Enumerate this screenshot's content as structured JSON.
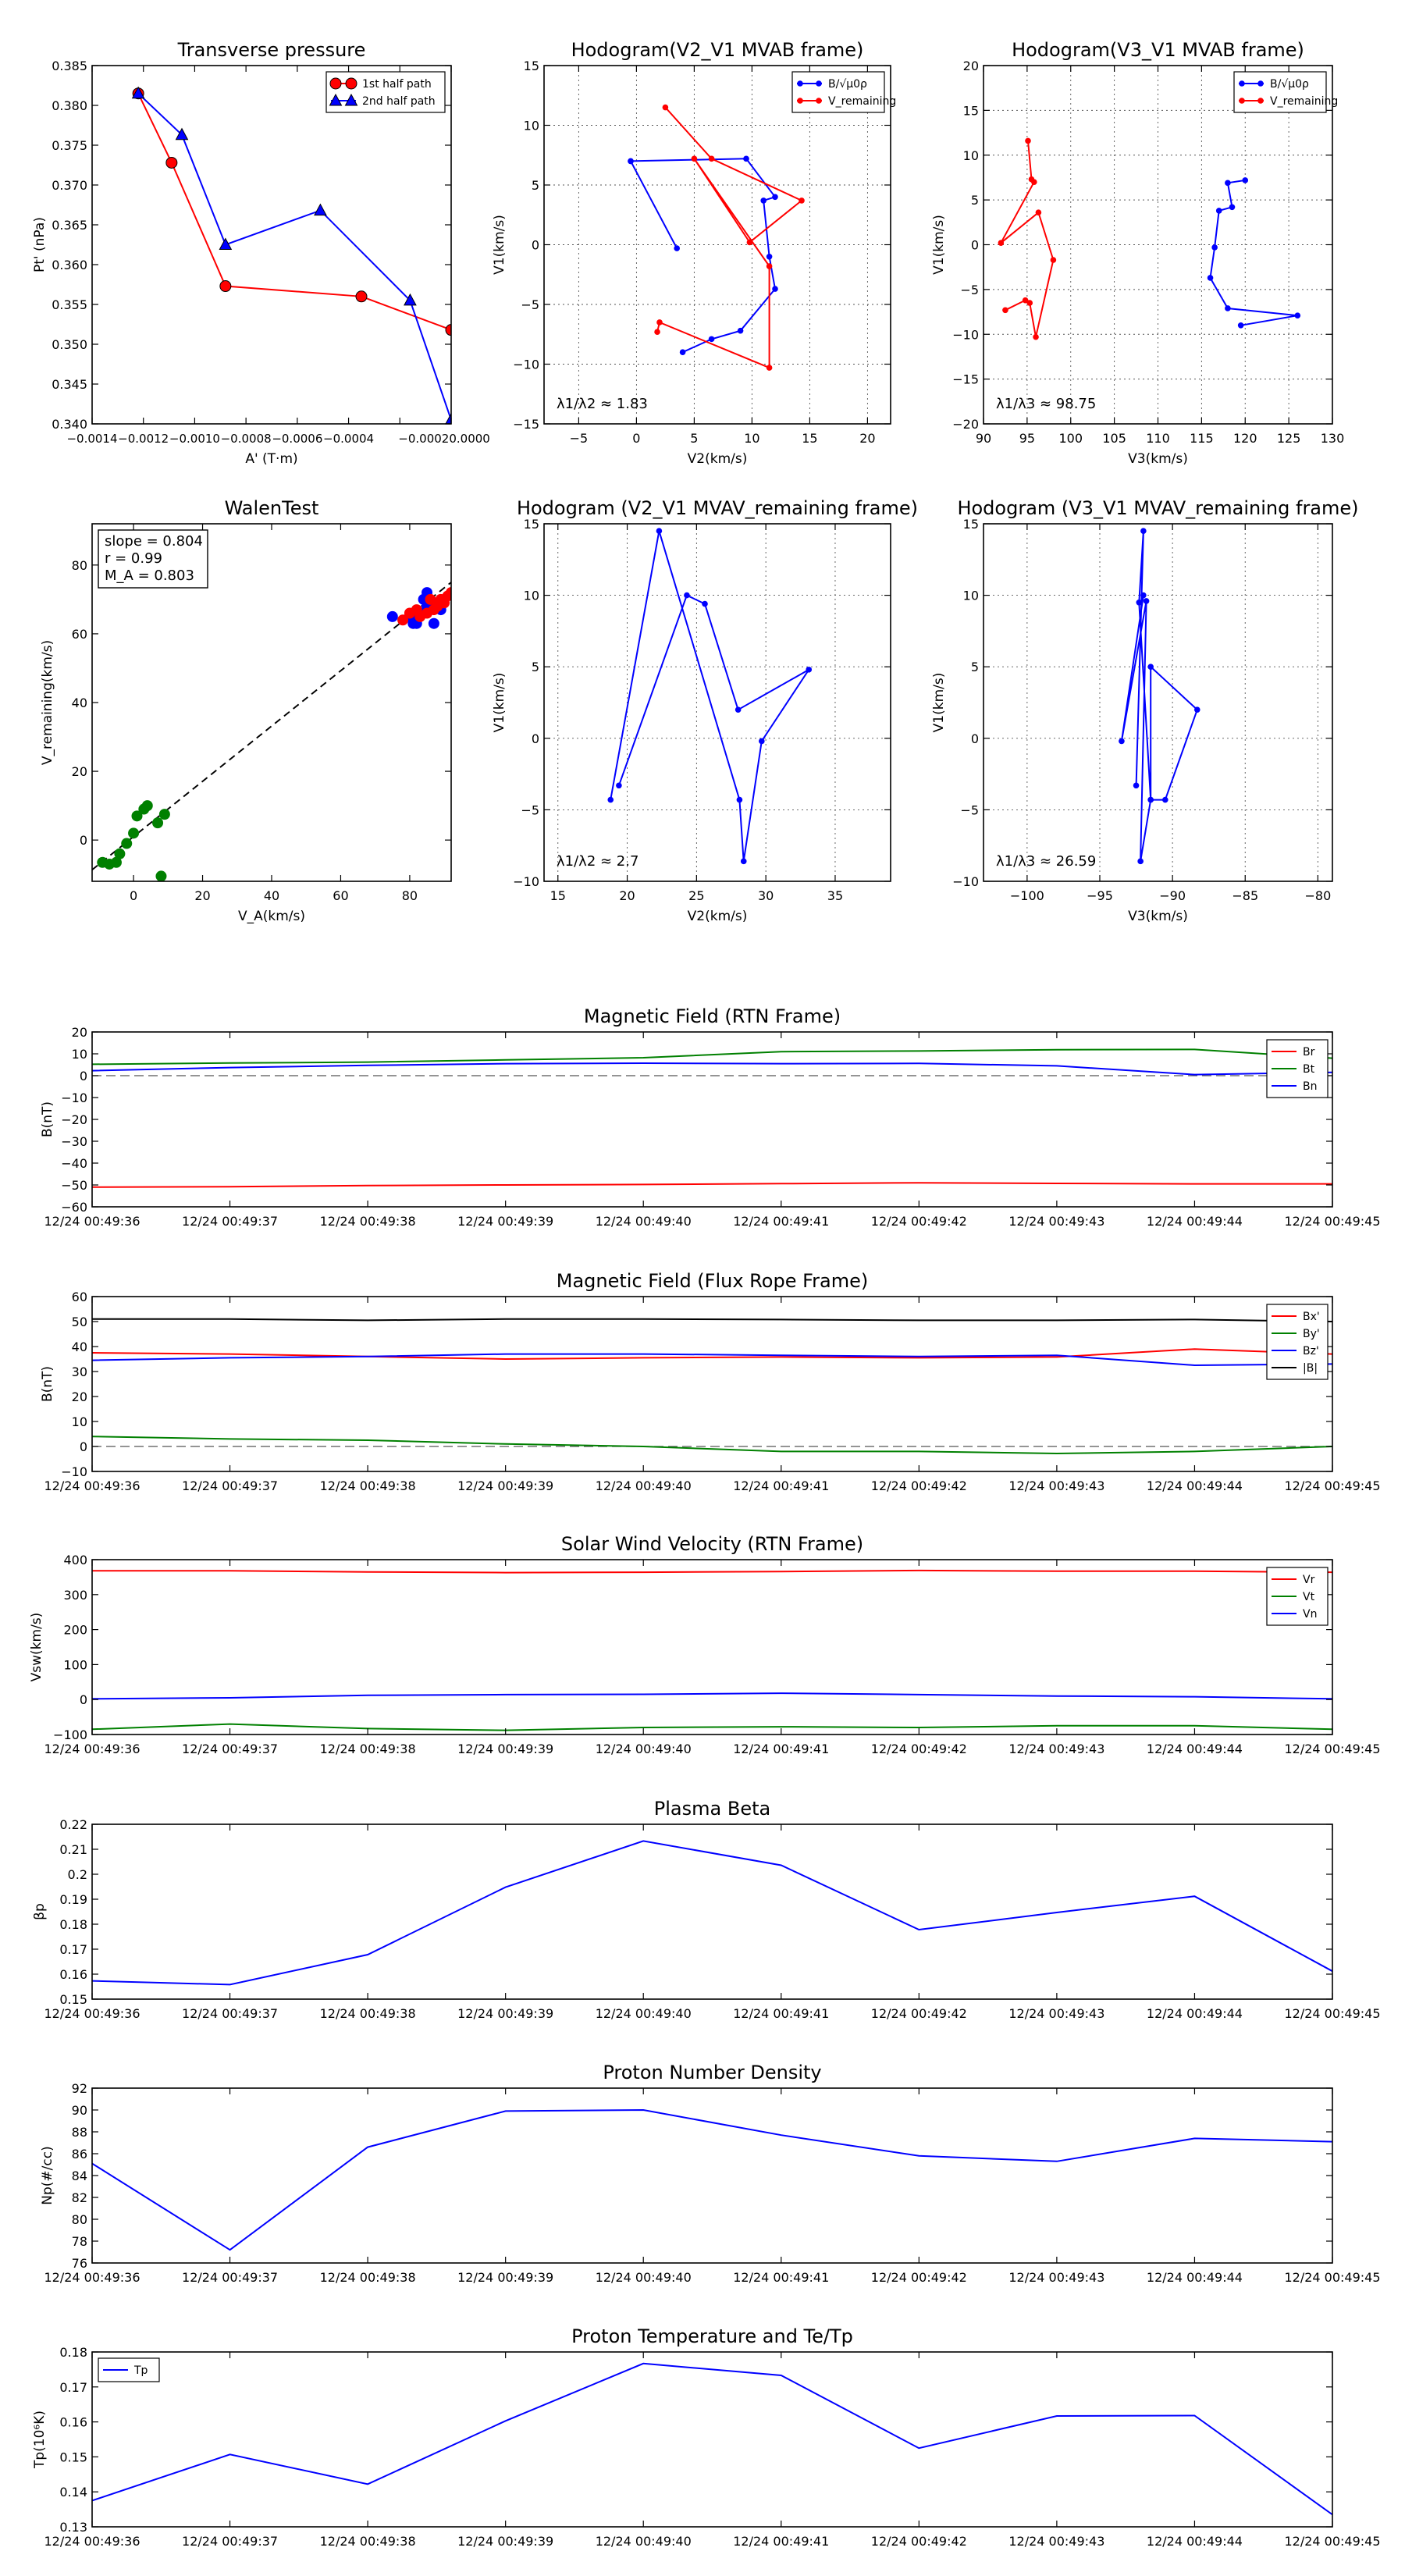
{
  "chart_data": [
    {
      "type": "line",
      "id": "tp",
      "title": "Transverse pressure",
      "xlabel": "A' (T·m)",
      "ylabel": "Pt' (nPa)",
      "xlim": [
        -0.0014,
        0.0
      ],
      "ylim": [
        0.34,
        0.385
      ],
      "xticks": [
        -0.0014,
        -0.0012,
        -0.001,
        -0.0008,
        -0.0006,
        -0.0004,
        -0.0002,
        0.0
      ],
      "xticklabels": [
        "−0.0014",
        "−0.0012",
        "−0.0010",
        "−0.0008",
        "−0.0006",
        "−0.0004",
        "−0.00020.0000",
        ""
      ],
      "yticks": [
        0.34,
        0.345,
        0.35,
        0.355,
        0.36,
        0.365,
        0.37,
        0.375,
        0.38,
        0.385
      ],
      "yticklabels": [
        "0.340",
        "0.345",
        "0.350",
        "0.355",
        "0.360",
        "0.365",
        "0.370",
        "0.375",
        "0.380",
        "0.385"
      ],
      "grid": false,
      "legend": "top-right",
      "series": [
        {
          "name": "1st half path",
          "color": "#ff0000",
          "marker": "circle",
          "x": [
            -0.00122,
            -0.00109,
            -0.00088,
            -0.00035,
            0.0
          ],
          "y": [
            0.3815,
            0.3728,
            0.3573,
            0.356,
            0.3518
          ]
        },
        {
          "name": "2nd half path",
          "color": "#0000ff",
          "marker": "triangle",
          "x": [
            -0.00122,
            -0.00105,
            -0.00088,
            -0.00051,
            -0.00016,
            0.0
          ],
          "y": [
            0.3815,
            0.3763,
            0.3625,
            0.3668,
            0.3555,
            0.3405
          ]
        }
      ]
    },
    {
      "type": "line",
      "id": "h1",
      "title": "Hodogram(V2_V1 MVAB frame)",
      "xlabel": "V2(km/s)",
      "ylabel": "V1(km/s)",
      "xlim": [
        -8,
        22
      ],
      "ylim": [
        -15,
        15
      ],
      "xticks": [
        -5,
        0,
        5,
        10,
        15,
        20
      ],
      "yticks": [
        -15,
        -10,
        -5,
        0,
        5,
        10,
        15
      ],
      "grid": true,
      "legend": "top-right",
      "annotation": "λ1/λ2 ≈ 1.83",
      "series": [
        {
          "name": "B/√μ0ρ",
          "color": "#0000ff",
          "x": [
            -0.5,
            9.5,
            12.0,
            11.0,
            11.5,
            12.0,
            9.0,
            6.5,
            4.0
          ],
          "y": [
            7.0,
            7.2,
            4.0,
            3.7,
            -1.0,
            -3.7,
            -7.2,
            -7.9,
            -9.0
          ]
        },
        {
          "name": "V_remaining",
          "color": "#ff0000",
          "x": [
            2.5,
            6.5,
            14.3,
            9.8,
            5.0,
            11.5,
            11.5,
            2.0,
            1.8
          ],
          "y": [
            11.5,
            7.2,
            3.7,
            0.2,
            7.2,
            -1.8,
            -10.3,
            -6.5,
            -7.3
          ]
        },
        {
          "name": "",
          "color": "#0000ff",
          "x": [
            -0.5,
            3.5
          ],
          "y": [
            7.0,
            -0.3
          ]
        }
      ]
    },
    {
      "type": "line",
      "id": "h2",
      "title": "Hodogram(V3_V1 MVAB frame)",
      "xlabel": "V3(km/s)",
      "ylabel": "V1(km/s)",
      "xlim": [
        90,
        130
      ],
      "ylim": [
        -20,
        20
      ],
      "xticks": [
        90,
        95,
        100,
        105,
        110,
        115,
        120,
        125,
        130
      ],
      "yticks": [
        -20,
        -15,
        -10,
        -5,
        0,
        5,
        10,
        15,
        20
      ],
      "grid": true,
      "legend": "top-right",
      "annotation": "λ1/λ3 ≈ 98.75",
      "series": [
        {
          "name": "B/√μ0ρ",
          "color": "#0000ff",
          "x": [
            120.0,
            118.0,
            118.5,
            117.0,
            116.5,
            116.0,
            118.0,
            126.0,
            119.5
          ],
          "y": [
            7.2,
            6.9,
            4.2,
            3.8,
            -0.3,
            -3.7,
            -7.1,
            -7.9,
            -9.0
          ]
        },
        {
          "name": "V_remaining",
          "color": "#ff0000",
          "x": [
            95.1,
            95.5,
            95.8,
            92.0,
            96.3,
            98.0,
            96.0,
            95.3,
            94.8,
            92.5
          ],
          "y": [
            11.6,
            7.3,
            7.0,
            0.2,
            3.6,
            -1.7,
            -10.3,
            -6.5,
            -6.2,
            -7.3
          ]
        }
      ]
    },
    {
      "type": "scatter",
      "id": "walen",
      "title": "WalenTest",
      "xlabel": "V_A(km/s)",
      "ylabel": "V_remaining(km/s)",
      "xlim": [
        -12,
        92
      ],
      "ylim": [
        -12,
        92
      ],
      "xticks": [
        0,
        20,
        40,
        60,
        80
      ],
      "yticks": [
        0,
        20,
        40,
        60,
        80
      ],
      "grid": false,
      "annotation_lines": [
        "slope = 0.804",
        "r = 0.99",
        "M_A = 0.803"
      ],
      "fit_line": {
        "slope": 0.804,
        "intercept": 1.0,
        "x_range": [
          -12,
          92
        ],
        "color": "#000000",
        "dash": true
      },
      "series": [
        {
          "name": "green",
          "color": "#008000",
          "x": [
            -9,
            -7,
            -5,
            -4,
            -2,
            0,
            1,
            3,
            4,
            7,
            8,
            9
          ],
          "y": [
            -6.5,
            -7,
            -6.5,
            -4,
            -1,
            2,
            7,
            9,
            10,
            5,
            -10.5,
            7.5
          ]
        },
        {
          "name": "blue",
          "color": "#0000ff",
          "x": [
            75,
            80,
            81,
            82,
            83,
            84,
            85,
            85,
            86,
            87,
            87,
            89
          ],
          "y": [
            65,
            65,
            63,
            63,
            66,
            70,
            72,
            68,
            67,
            69,
            63,
            67
          ]
        },
        {
          "name": "red",
          "color": "#ff0000",
          "x": [
            78,
            80,
            82,
            83,
            85,
            86,
            87,
            88,
            89,
            90,
            91,
            92
          ],
          "y": [
            64,
            66,
            67,
            65,
            66,
            70,
            67,
            68,
            70,
            69,
            71,
            72
          ]
        }
      ]
    },
    {
      "type": "line",
      "id": "h3",
      "title": "Hodogram (V2_V1 MVAV_remaining frame)",
      "xlabel": "V2(km/s)",
      "ylabel": "V1(km/s)",
      "xlim": [
        14,
        39
      ],
      "ylim": [
        -10,
        15
      ],
      "xticks": [
        15,
        20,
        25,
        30,
        35
      ],
      "yticks": [
        -10,
        -5,
        0,
        5,
        10,
        15
      ],
      "grid": true,
      "annotation": "λ1/λ2 ≈ 2.7",
      "series": [
        {
          "name": "",
          "color": "#0000ff",
          "x": [
            18.8,
            22.3,
            28.1,
            28.4,
            29.7,
            33.1,
            28.0,
            25.6,
            24.3,
            19.4
          ],
          "y": [
            -4.3,
            14.5,
            -4.3,
            -8.6,
            -0.2,
            4.8,
            2.0,
            9.4,
            10.0,
            -3.3
          ]
        }
      ]
    },
    {
      "type": "line",
      "id": "h4",
      "title": "Hodogram (V3_V1 MVAV_remaining frame)",
      "xlabel": "V3(km/s)",
      "ylabel": "V1(km/s)",
      "xlim": [
        -103,
        -79
      ],
      "ylim": [
        -10,
        15
      ],
      "xticks": [
        -100,
        -95,
        -90,
        -85,
        -80
      ],
      "yticks": [
        -10,
        -5,
        0,
        5,
        10,
        15
      ],
      "grid": true,
      "annotation": "λ1/λ3 ≈ 26.59",
      "series": [
        {
          "name": "",
          "color": "#0000ff",
          "x": [
            -92.5,
            -92.0,
            -92.3,
            -91.5,
            -90.5,
            -88.3,
            -91.5,
            -91.5,
            -92.2,
            -91.8,
            -93.5,
            -92.0
          ],
          "y": [
            -3.3,
            14.5,
            9.5,
            -4.3,
            -4.3,
            2.0,
            5.0,
            -4.3,
            -8.6,
            9.6,
            -0.2,
            10.0
          ]
        }
      ]
    },
    {
      "type": "line",
      "id": "mf_rtn",
      "title": "Magnetic Field (RTN Frame)",
      "xlabel": "",
      "ylabel": "B(nT)",
      "categories": [
        "12/24 00:49:36",
        "12/24 00:49:37",
        "12/24 00:49:38",
        "12/24 00:49:39",
        "12/24 00:49:40",
        "12/24 00:49:41",
        "12/24 00:49:42",
        "12/24 00:49:43",
        "12/24 00:49:44",
        "12/24 00:49:45"
      ],
      "ylim": [
        -60,
        20
      ],
      "yticks": [
        -60,
        -50,
        -40,
        -30,
        -20,
        -10,
        0,
        10,
        20
      ],
      "zero_line": true,
      "legend": "right",
      "series": [
        {
          "name": "Br",
          "color": "#ff0000",
          "values": [
            -51,
            -50.8,
            -50.3,
            -50,
            -49.8,
            -49.4,
            -49,
            -49.3,
            -49.5,
            -49.5
          ]
        },
        {
          "name": "Bt",
          "color": "#008000",
          "values": [
            5.2,
            5.8,
            6.2,
            7.2,
            8.2,
            11,
            11.3,
            11.9,
            12,
            8
          ]
        },
        {
          "name": "Bn",
          "color": "#0000ff",
          "values": [
            2.3,
            3.7,
            4.7,
            5.5,
            5.7,
            5.5,
            5.6,
            4.5,
            0.5,
            1.5
          ]
        }
      ]
    },
    {
      "type": "line",
      "id": "mf_fr",
      "title": "Magnetic Field (Flux Rope Frame)",
      "xlabel": "",
      "ylabel": "B(nT)",
      "categories": [
        "12/24 00:49:36",
        "12/24 00:49:37",
        "12/24 00:49:38",
        "12/24 00:49:39",
        "12/24 00:49:40",
        "12/24 00:49:41",
        "12/24 00:49:42",
        "12/24 00:49:43",
        "12/24 00:49:44",
        "12/24 00:49:45"
      ],
      "ylim": [
        -10,
        60
      ],
      "yticks": [
        -10,
        0,
        10,
        20,
        30,
        40,
        50,
        60
      ],
      "zero_line": true,
      "legend": "right",
      "series": [
        {
          "name": "Bx'",
          "color": "#ff0000",
          "values": [
            37.5,
            37,
            36,
            35,
            35.5,
            35.8,
            35.5,
            35.8,
            39,
            37
          ]
        },
        {
          "name": "By'",
          "color": "#008000",
          "values": [
            4,
            3,
            2.5,
            1,
            0,
            -2,
            -2,
            -2.8,
            -2,
            0
          ]
        },
        {
          "name": "Bz'",
          "color": "#0000ff",
          "values": [
            34.5,
            35.5,
            36,
            37,
            37,
            36.5,
            36,
            36.5,
            32.5,
            33
          ]
        },
        {
          "name": "|B|",
          "color": "#000000",
          "values": [
            51,
            51,
            50.5,
            51,
            51,
            50.8,
            50.5,
            50.5,
            50.8,
            50
          ]
        }
      ]
    },
    {
      "type": "line",
      "id": "sw",
      "title": "Solar Wind Velocity (RTN Frame)",
      "xlabel": "",
      "ylabel": "Vsw(km/s)",
      "categories": [
        "12/24 00:49:36",
        "12/24 00:49:37",
        "12/24 00:49:38",
        "12/24 00:49:39",
        "12/24 00:49:40",
        "12/24 00:49:41",
        "12/24 00:49:42",
        "12/24 00:49:43",
        "12/24 00:49:44",
        "12/24 00:49:45"
      ],
      "ylim": [
        -100,
        400
      ],
      "yticks": [
        -100,
        0,
        100,
        200,
        300,
        400
      ],
      "legend": "right",
      "series": [
        {
          "name": "Vr",
          "color": "#ff0000",
          "values": [
            368,
            368,
            365,
            363,
            364,
            366,
            369,
            367,
            367,
            364
          ]
        },
        {
          "name": "Vt",
          "color": "#008000",
          "values": [
            -85,
            -70,
            -83,
            -88,
            -80,
            -78,
            -80,
            -75,
            -75,
            -85
          ]
        },
        {
          "name": "Vn",
          "color": "#0000ff",
          "values": [
            2,
            5,
            12,
            14,
            15,
            18,
            14,
            10,
            8,
            2
          ]
        }
      ]
    },
    {
      "type": "line",
      "id": "beta",
      "title": "Plasma Beta",
      "xlabel": "",
      "ylabel": "βp",
      "categories": [
        "12/24 00:49:36",
        "12/24 00:49:37",
        "12/24 00:49:38",
        "12/24 00:49:39",
        "12/24 00:49:40",
        "12/24 00:49:41",
        "12/24 00:49:42",
        "12/24 00:49:43",
        "12/24 00:49:44",
        "12/24 00:49:45"
      ],
      "ylim": [
        0.15,
        0.22
      ],
      "yticks": [
        0.15,
        0.16,
        0.17,
        0.18,
        0.19,
        0.2,
        0.21,
        0.22
      ],
      "yticklabels": [
        "0.15",
        "0.16",
        "0.17",
        "0.18",
        "0.19",
        "0.2",
        "0.21",
        "0.22"
      ],
      "series": [
        {
          "name": "beta",
          "color": "#0000ff",
          "values": [
            0.1573,
            0.1558,
            0.1678,
            0.1948,
            0.2133,
            0.2036,
            0.1778,
            0.1847,
            0.1912,
            0.1612
          ]
        }
      ]
    },
    {
      "type": "line",
      "id": "np",
      "title": "Proton Number Density",
      "xlabel": "",
      "ylabel": "Np(#/cc)",
      "categories": [
        "12/24 00:49:36",
        "12/24 00:49:37",
        "12/24 00:49:38",
        "12/24 00:49:39",
        "12/24 00:49:40",
        "12/24 00:49:41",
        "12/24 00:49:42",
        "12/24 00:49:43",
        "12/24 00:49:44",
        "12/24 00:49:45"
      ],
      "ylim": [
        76,
        92
      ],
      "yticks": [
        76,
        78,
        80,
        82,
        84,
        86,
        88,
        90,
        92
      ],
      "series": [
        {
          "name": "Np",
          "color": "#0000ff",
          "values": [
            85.1,
            77.2,
            86.6,
            89.9,
            90.0,
            87.7,
            85.8,
            85.3,
            87.4,
            87.1
          ]
        }
      ]
    },
    {
      "type": "line",
      "id": "tp2",
      "title": "Proton Temperature and Te/Tp",
      "xlabel": "",
      "ylabel": "Tp(10⁶K)",
      "categories": [
        "12/24 00:49:36",
        "12/24 00:49:37",
        "12/24 00:49:38",
        "12/24 00:49:39",
        "12/24 00:49:40",
        "12/24 00:49:41",
        "12/24 00:49:42",
        "12/24 00:49:43",
        "12/24 00:49:44",
        "12/24 00:49:45"
      ],
      "ylim": [
        0.13,
        0.18
      ],
      "yticks": [
        0.13,
        0.14,
        0.15,
        0.16,
        0.17,
        0.18
      ],
      "yticklabels": [
        "0.13",
        "0.14",
        "0.15",
        "0.16",
        "0.17",
        "0.18"
      ],
      "legend": "top-left",
      "series": [
        {
          "name": "Tp",
          "color": "#0000ff",
          "values": [
            0.1375,
            0.1507,
            0.1422,
            0.1603,
            0.1767,
            0.1733,
            0.1525,
            0.1617,
            0.1618,
            0.1335
          ]
        }
      ]
    }
  ]
}
